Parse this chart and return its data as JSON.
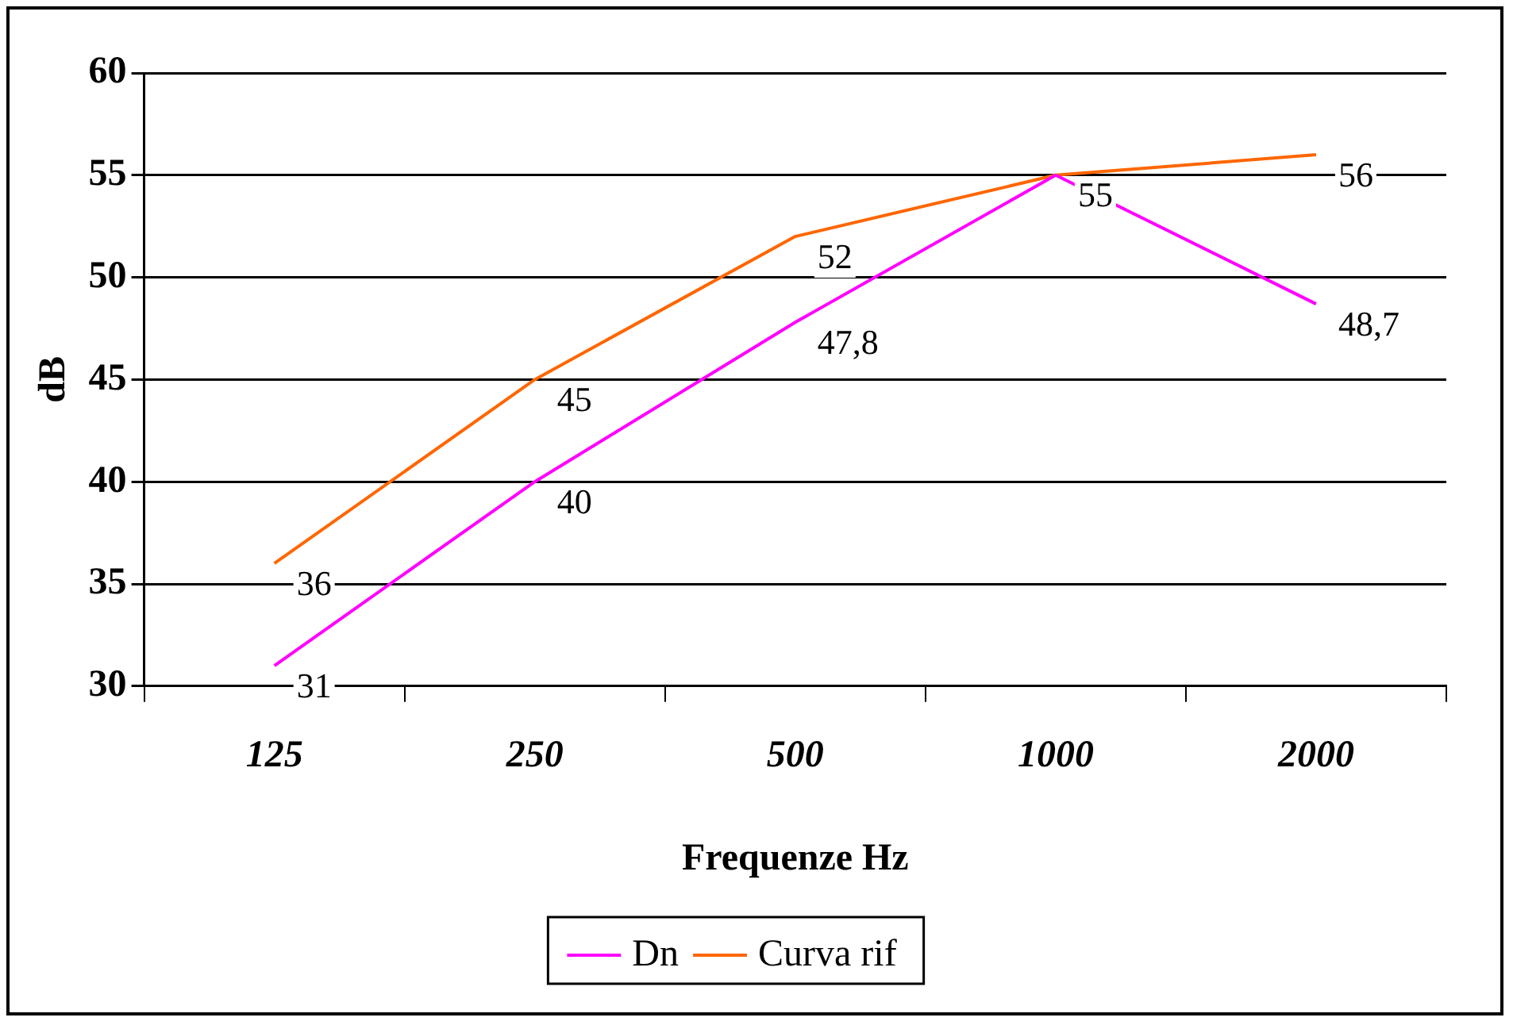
{
  "chart_data": {
    "type": "line",
    "xlabel": "Frequenze Hz",
    "ylabel": "dB",
    "categories": [
      "125",
      "250",
      "500",
      "1000",
      "2000"
    ],
    "series": [
      {
        "name": "Dn",
        "color": "#ff00ff",
        "values": [
          31,
          40,
          47.8,
          55,
          48.7
        ],
        "value_labels": [
          "31",
          "40",
          "47,8",
          null,
          "48,7"
        ]
      },
      {
        "name": "Curva rif",
        "color": "#ff6600",
        "values": [
          36,
          45,
          52,
          55,
          56
        ],
        "value_labels": [
          "36",
          "45",
          "52",
          "55",
          "56"
        ]
      }
    ],
    "ylim": [
      30,
      60
    ],
    "yticks": [
      30,
      35,
      40,
      45,
      50,
      55,
      60
    ],
    "grid": "y",
    "legend": "bottom",
    "marker": "none"
  }
}
